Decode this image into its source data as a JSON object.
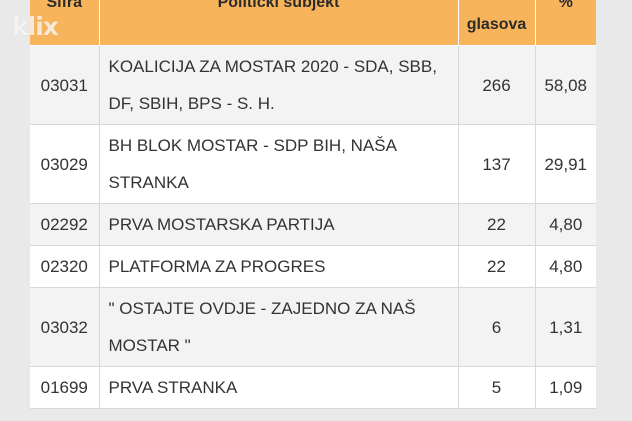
{
  "brand": {
    "watermark": "klix"
  },
  "table": {
    "headers": {
      "code": "Šifra",
      "subject": "Politički subjekt",
      "votes": "glasova",
      "percent": "%"
    },
    "rows": [
      {
        "code": "03031",
        "subject": "KOALICIJA ZA MOSTAR 2020 - SDA, SBB, DF, SBIH, BPS - S. H.",
        "votes": "266",
        "percent": "58,08"
      },
      {
        "code": "03029",
        "subject": "BH BLOK MOSTAR - SDP BIH, NAŠA STRANKA",
        "votes": "137",
        "percent": "29,91"
      },
      {
        "code": "02292",
        "subject": "PRVA MOSTARSKA PARTIJA",
        "votes": "22",
        "percent": "4,80"
      },
      {
        "code": "02320",
        "subject": "PLATFORMA ZA PROGRES",
        "votes": "22",
        "percent": "4,80"
      },
      {
        "code": "03032",
        "subject": "\" OSTAJTE OVDJE - ZAJEDNO ZA NAŠ MOSTAR \"",
        "votes": "6",
        "percent": "1,31"
      },
      {
        "code": "01699",
        "subject": "PRVA STRANKA",
        "votes": "5",
        "percent": "1,09"
      }
    ]
  }
}
